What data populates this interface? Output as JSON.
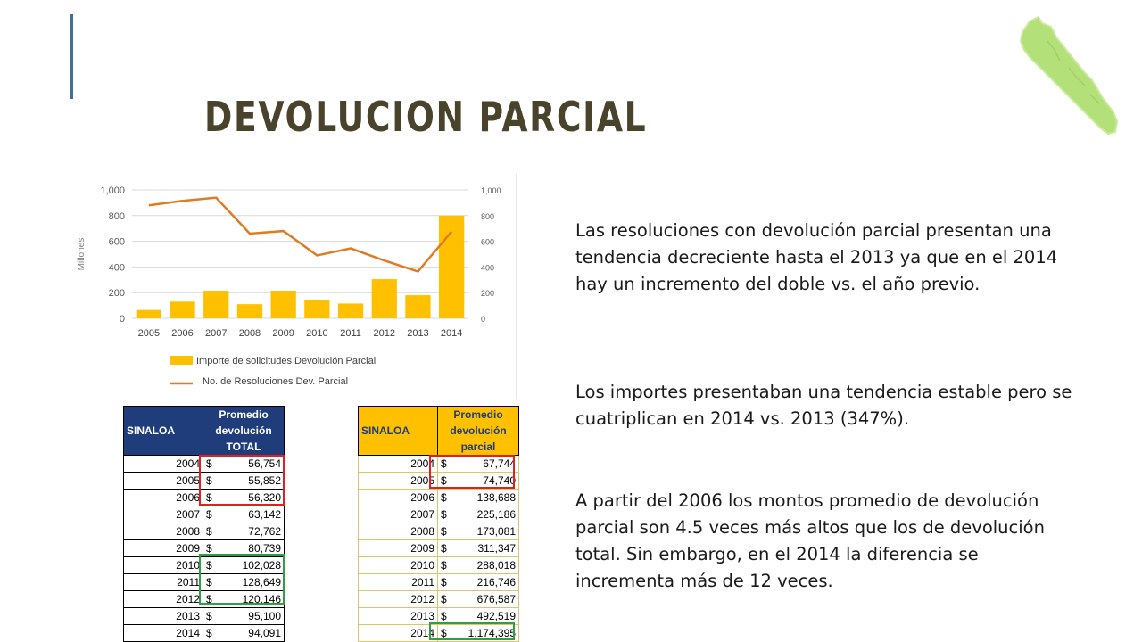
{
  "slide": {
    "title": "DEVOLUCION PARCIAL",
    "colors": {
      "title": "#4a432c",
      "accent_line": "#3e6f9e",
      "bar": "#ffc000",
      "line": "#e07b22",
      "map": "#b4e07a",
      "red_highlight": "#e02020",
      "green_highlight": "#2ea043"
    },
    "map_icon": "sinaloa-map-icon"
  },
  "chart_data": {
    "type": "bar",
    "categories": [
      "2005",
      "2006",
      "2007",
      "2008",
      "2009",
      "2010",
      "2011",
      "2012",
      "2013",
      "2014"
    ],
    "series": [
      {
        "name": "Importe de solicitudes Devolución Parcial",
        "type": "bar",
        "axis": "left",
        "values": [
          65,
          130,
          215,
          110,
          215,
          145,
          115,
          305,
          180,
          800
        ]
      },
      {
        "name": "No. de Resoluciones Dev. Parcial",
        "type": "line",
        "axis": "right",
        "values": [
          880,
          915,
          940,
          660,
          680,
          490,
          545,
          450,
          365,
          675
        ]
      }
    ],
    "ylabel": "Millones",
    "ylim": [
      0,
      1000
    ],
    "y2lim": [
      0,
      1000
    ],
    "yticks": [
      "0",
      "200",
      "400",
      "600",
      "800",
      "1,000"
    ],
    "y2ticks": [
      "0",
      "200",
      "400",
      "600",
      "800",
      "1,000"
    ],
    "grid": true,
    "legend_position": "bottom"
  },
  "table_total": {
    "state": "SINALOA",
    "header": [
      "Promedio",
      "devolución",
      "TOTAL"
    ],
    "currency": "$",
    "rows": [
      {
        "year": "2004",
        "amount": "56,754"
      },
      {
        "year": "2005",
        "amount": "55,852"
      },
      {
        "year": "2006",
        "amount": "56,320"
      },
      {
        "year": "2007",
        "amount": "63,142"
      },
      {
        "year": "2008",
        "amount": "72,762"
      },
      {
        "year": "2009",
        "amount": "80,739"
      },
      {
        "year": "2010",
        "amount": "102,028"
      },
      {
        "year": "2011",
        "amount": "128,649"
      },
      {
        "year": "2012",
        "amount": "120,146"
      },
      {
        "year": "2013",
        "amount": "95,100"
      },
      {
        "year": "2014",
        "amount": "94,091"
      }
    ]
  },
  "table_partial": {
    "state": "SINALOA",
    "header": [
      "Promedio",
      "devolución",
      "parcial"
    ],
    "currency": "$",
    "rows": [
      {
        "year": "2004",
        "amount": "67,744"
      },
      {
        "year": "2005",
        "amount": "74,740"
      },
      {
        "year": "2006",
        "amount": "138,688"
      },
      {
        "year": "2007",
        "amount": "225,186"
      },
      {
        "year": "2008",
        "amount": "173,081"
      },
      {
        "year": "2009",
        "amount": "311,347"
      },
      {
        "year": "2010",
        "amount": "288,018"
      },
      {
        "year": "2011",
        "amount": "216,746"
      },
      {
        "year": "2012",
        "amount": "676,587"
      },
      {
        "year": "2013",
        "amount": "492,519"
      },
      {
        "year": "2014",
        "amount": "1,174,395"
      }
    ]
  },
  "text": {
    "p1": "Las resoluciones con devolución parcial presentan una tendencia decreciente hasta el 2013 ya que en el 2014 hay un incremento del doble vs. el año previo.",
    "p2": "Los importes presentaban una tendencia estable pero se cuatriplican en 2014 vs. 2013 (347%).",
    "p3": "A partir del 2006 los montos promedio de devolución parcial son 4.5 veces más altos que los de devolución total. Sin embargo, en el 2014 la diferencia se incrementa más de 12 veces."
  }
}
